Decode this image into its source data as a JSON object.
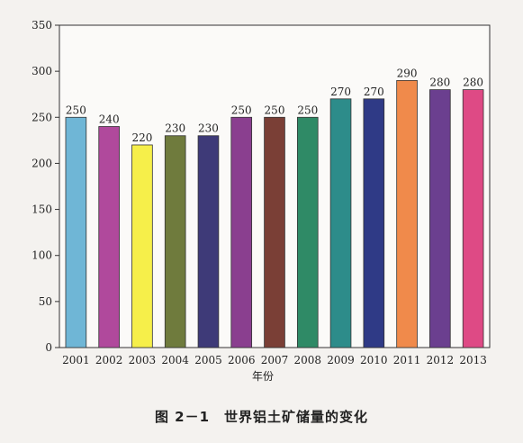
{
  "caption": {
    "number": "图 2－1",
    "text": "世界铝土矿储量的变化"
  },
  "chart_data": {
    "type": "bar",
    "xlabel": "年份",
    "ylabel": "",
    "ylim": [
      0,
      350
    ],
    "yticks": [
      0,
      50,
      100,
      150,
      200,
      250,
      300,
      350
    ],
    "categories": [
      "2001",
      "2002",
      "2003",
      "2004",
      "2005",
      "2006",
      "2007",
      "2008",
      "2009",
      "2010",
      "2011",
      "2012",
      "2013"
    ],
    "values": [
      250,
      240,
      220,
      230,
      230,
      250,
      250,
      250,
      270,
      270,
      290,
      280,
      280
    ],
    "data_labels": [
      "250",
      "240",
      "220",
      "230",
      "230",
      "250",
      "250",
      "250",
      "270",
      "270",
      "290",
      "280",
      "280"
    ],
    "colors": [
      "#6fb6d6",
      "#b0499c",
      "#f6ef4a",
      "#6f7b3d",
      "#3e3a78",
      "#8a3f8f",
      "#7a3f36",
      "#2f8a66",
      "#2d8c8a",
      "#2f3a86",
      "#f08a4b",
      "#6b3f8f",
      "#de4a85"
    ],
    "grid": false,
    "legend": "none"
  }
}
